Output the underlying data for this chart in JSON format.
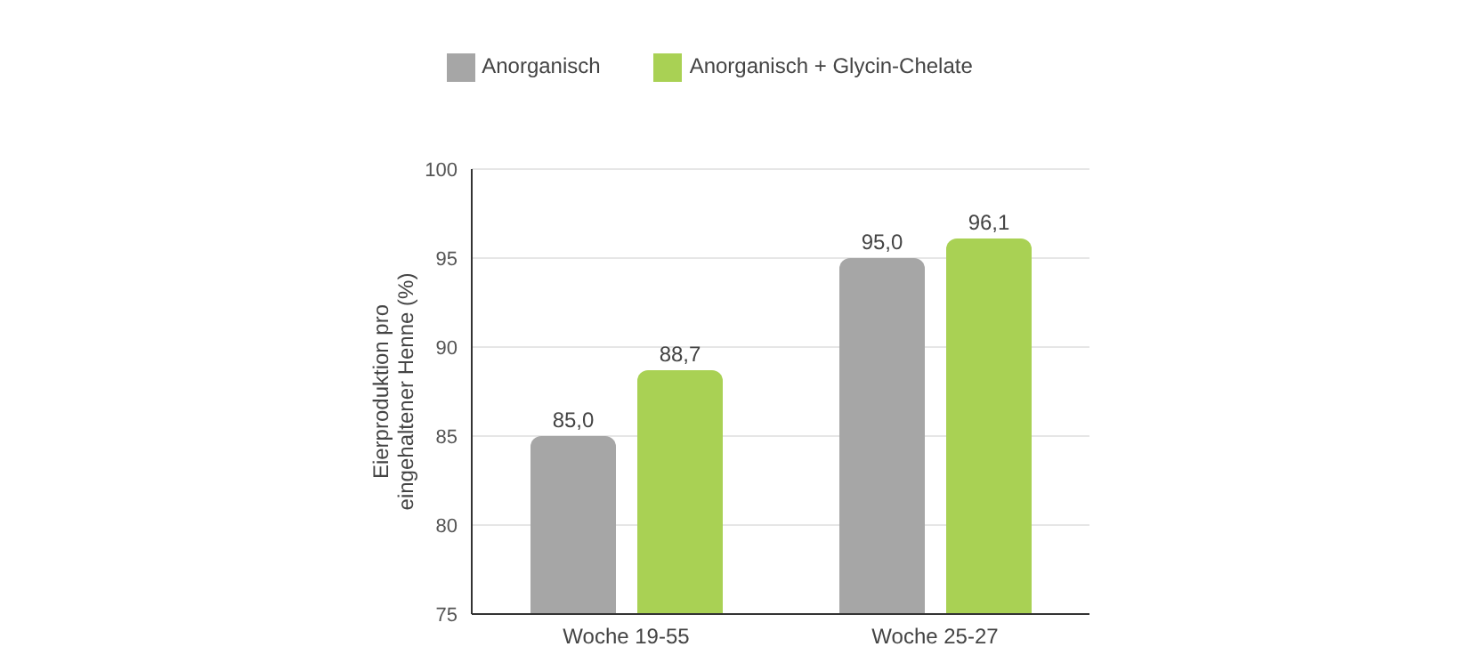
{
  "chart_data": {
    "type": "bar",
    "ylabel": "Eierproduktion pro eingehaltener Henne (%)",
    "categories": [
      "Woche 19-55",
      "Woche 25-27"
    ],
    "series": [
      {
        "name": "Anorganisch",
        "color": "#a6a6a6",
        "values": [
          85.0,
          95.0
        ],
        "value_labels": [
          "85,0",
          "95,0"
        ]
      },
      {
        "name": "Anorganisch + Glycin-Chelate",
        "color": "#a9d154",
        "values": [
          88.7,
          96.1
        ],
        "value_labels": [
          "88,7",
          "96,1"
        ]
      }
    ],
    "ylim": [
      75,
      100
    ],
    "yticks": [
      75,
      80,
      85,
      90,
      95,
      100
    ],
    "grid": "y",
    "legend": "top"
  }
}
